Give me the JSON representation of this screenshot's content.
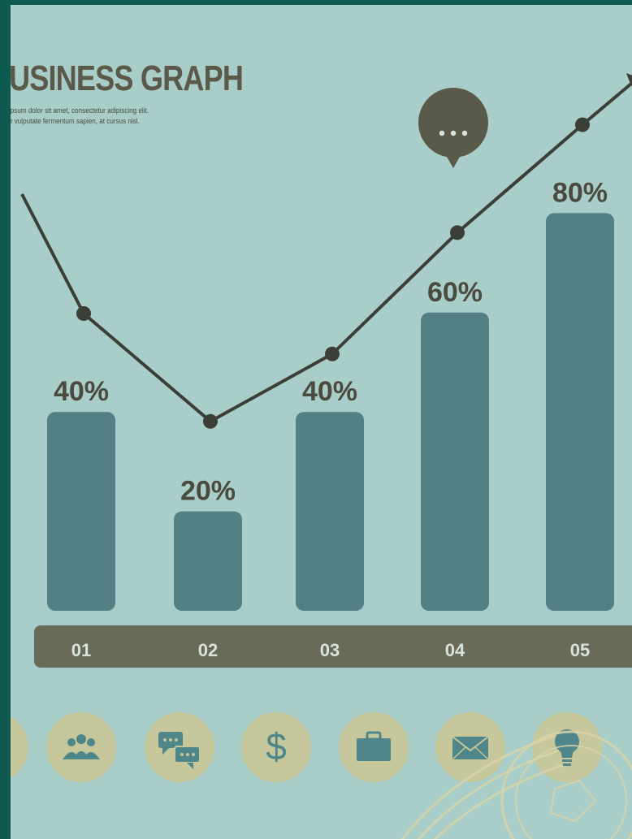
{
  "header": {
    "title": "USINESS GRAPH",
    "subtitle_line1": "ipsum dolor sit amet, consectetur adipiscing elit.",
    "subtitle_line2": "e vulputate fermentum sapien, at cursus nisl."
  },
  "colors": {
    "background": "#a9cdc9",
    "frame": "#0e5a50",
    "bar": "#538085",
    "line": "#3c3f37",
    "category_band": "#6a6a58",
    "icon_circle": "#c7c79c",
    "icon": "#4f868a"
  },
  "chart_data": {
    "type": "bar",
    "categories": [
      "01",
      "02",
      "03",
      "04",
      "05"
    ],
    "values": [
      40,
      20,
      40,
      60,
      80
    ],
    "labels": [
      "40%",
      "20%",
      "40%",
      "60%",
      "80%"
    ],
    "ylim": [
      0,
      100
    ],
    "trend_line": {
      "type": "line",
      "values": [
        60,
        44,
        54,
        72,
        88
      ]
    },
    "annotation": "speech-bubble on point 04"
  },
  "icons": [
    "people-icon-partial",
    "people-group-icon",
    "chat-bubbles-icon",
    "dollar-icon",
    "briefcase-icon",
    "envelope-icon",
    "lightbulb-icon"
  ]
}
